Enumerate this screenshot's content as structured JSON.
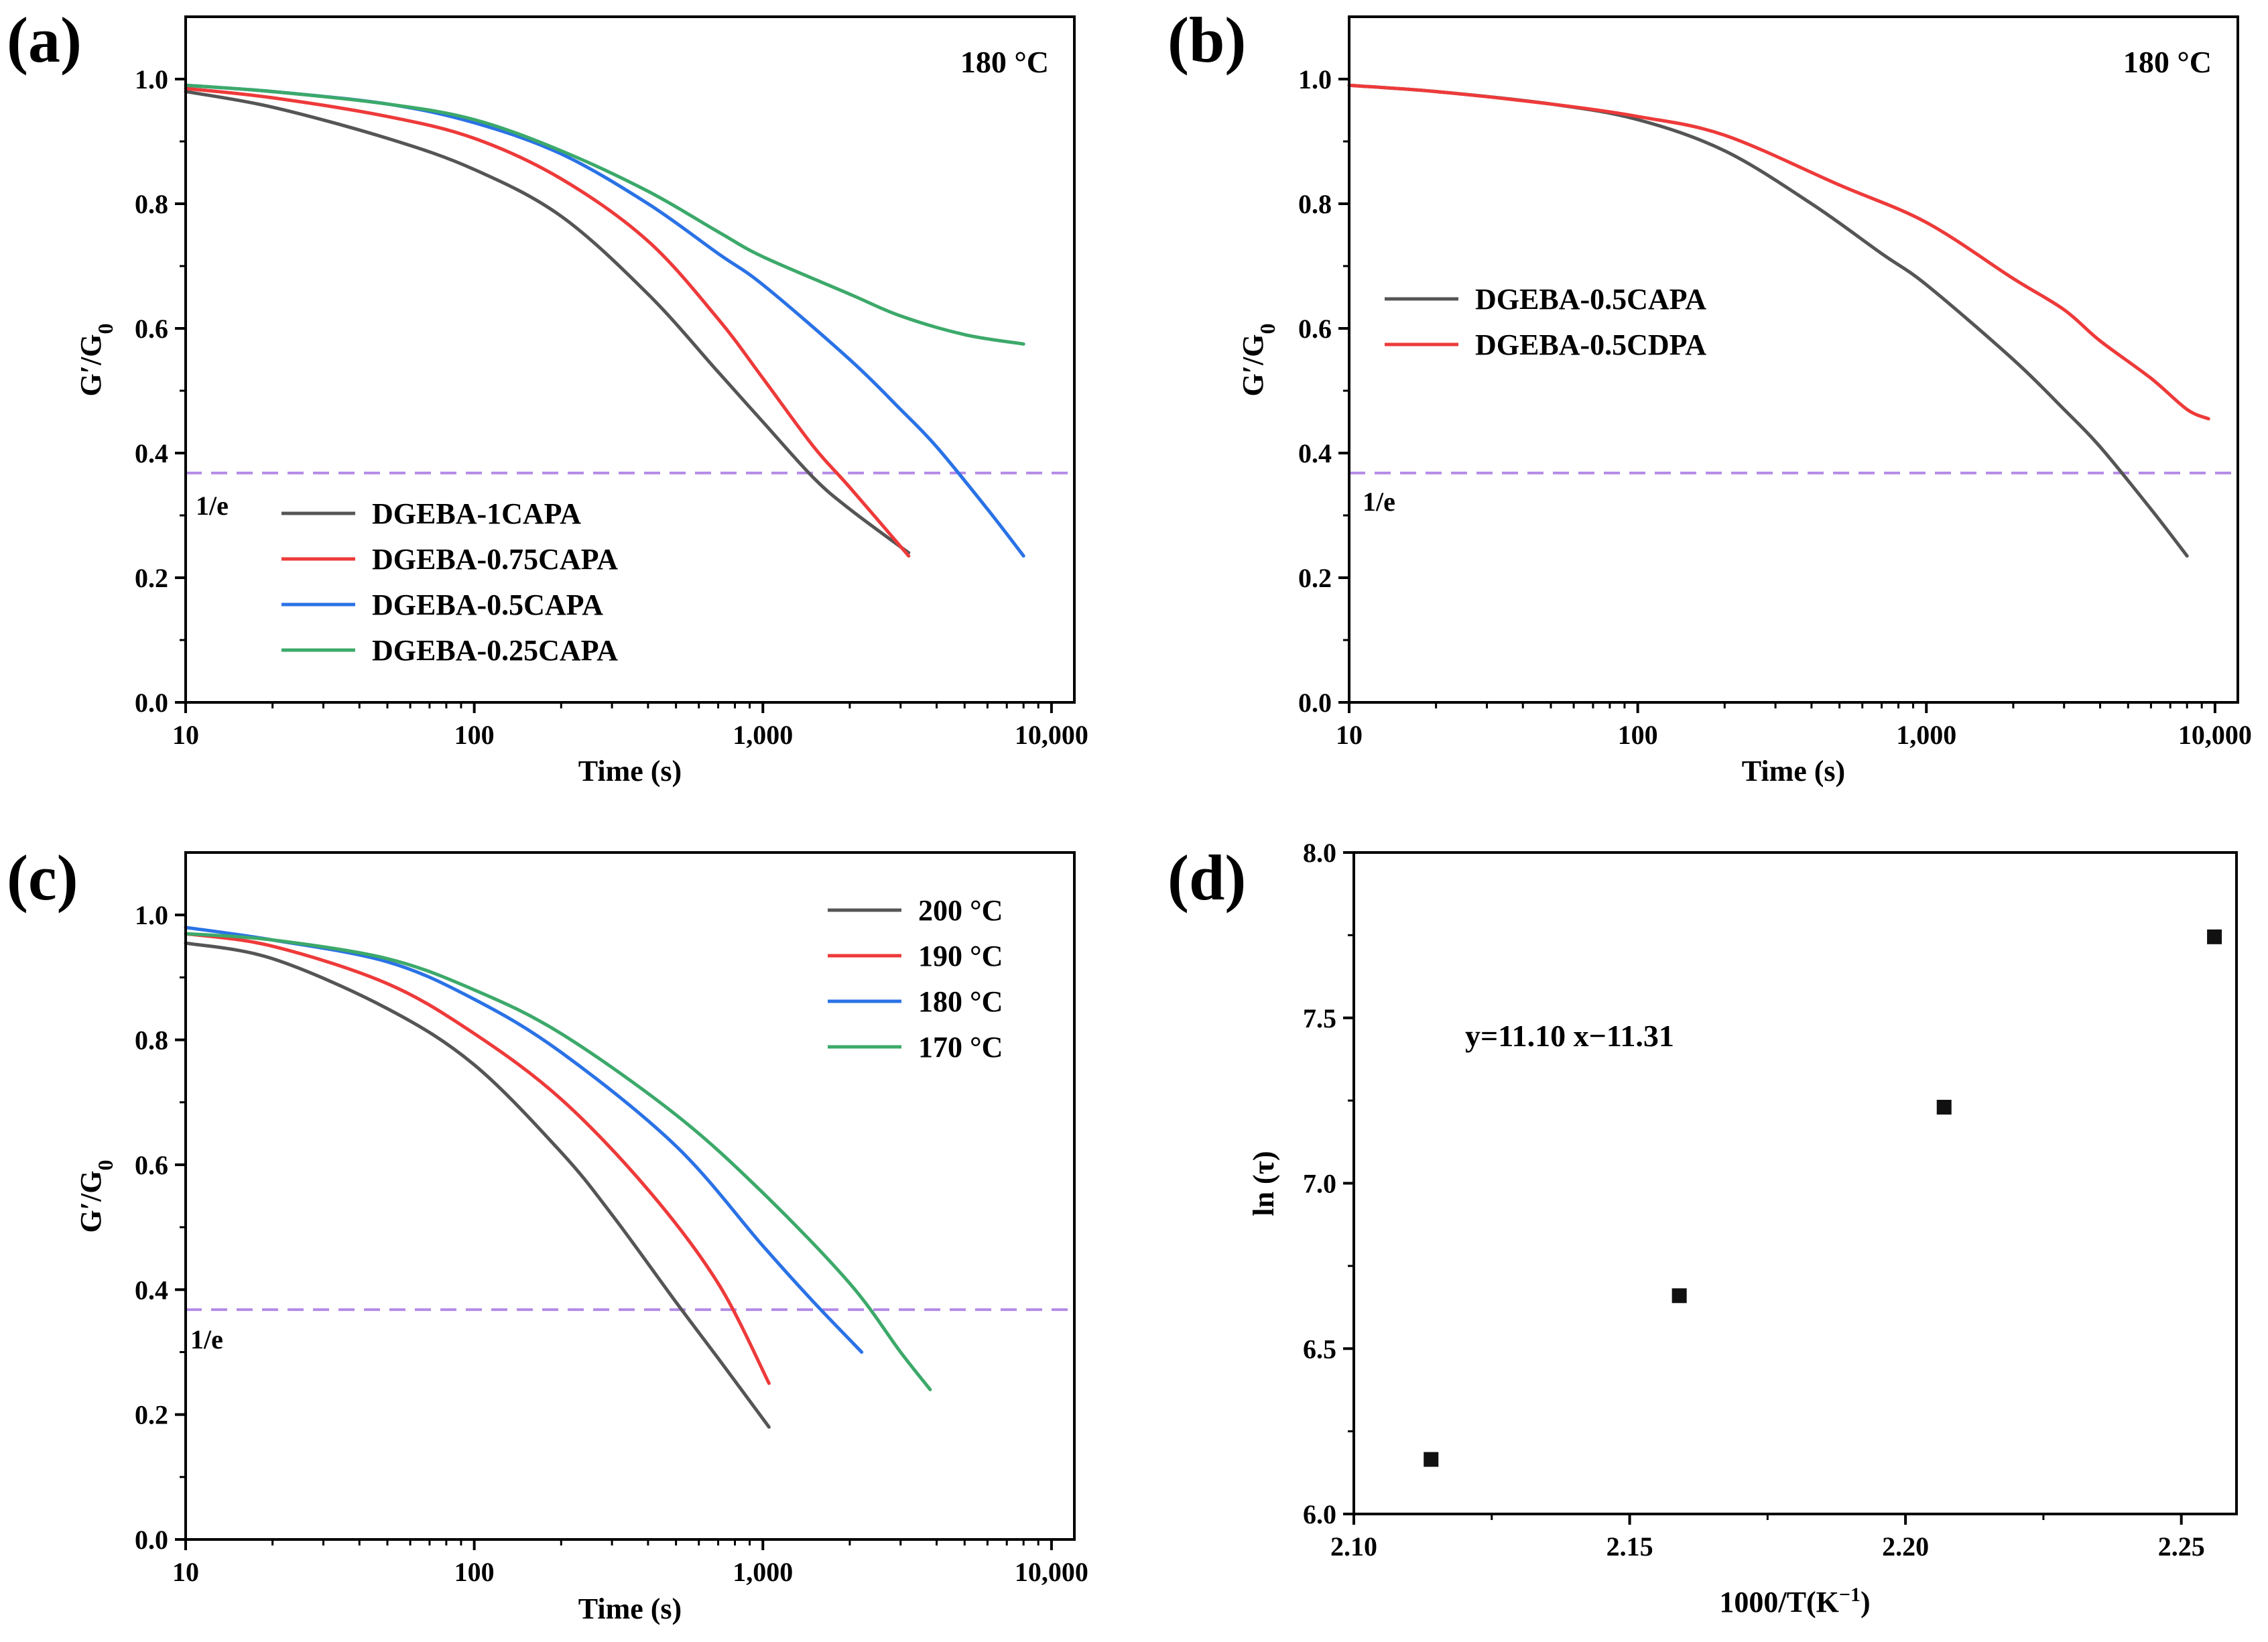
{
  "chart_data": [
    {
      "panel": "(a)",
      "type": "line",
      "annotation": "180 °C",
      "xlabel": "Time (s)",
      "ylabel_main": "G′/G",
      "ylabel_sub": "0",
      "x_scale": "log",
      "xlim": [
        10,
        12000
      ],
      "ylim": [
        0,
        1.1
      ],
      "x_ticks": [
        10,
        100,
        1000,
        10000
      ],
      "x_tick_labels": [
        "10",
        "100",
        "1,000",
        "10,000"
      ],
      "y_ticks": [
        0,
        0.2,
        0.4,
        0.6,
        0.8,
        1.0
      ],
      "y_tick_labels": [
        "0.0",
        "0.2",
        "0.4",
        "0.6",
        "0.8",
        "1.0"
      ],
      "reference_line": {
        "y": 0.368,
        "label": "1/e",
        "color": "#b48ae6"
      },
      "legend_position": "bottom-left",
      "series": [
        {
          "name": "DGEBA-1CAPA",
          "color": "#555555",
          "x": [
            10,
            20,
            50,
            100,
            200,
            400,
            700,
            1000,
            1500,
            2000,
            3200
          ],
          "y": [
            0.98,
            0.955,
            0.905,
            0.855,
            0.78,
            0.655,
            0.53,
            0.45,
            0.36,
            0.31,
            0.24
          ]
        },
        {
          "name": "DGEBA-0.75CAPA",
          "color": "#ee3a3a",
          "x": [
            10,
            20,
            50,
            100,
            200,
            400,
            700,
            1000,
            1500,
            2000,
            3200
          ],
          "y": [
            0.985,
            0.97,
            0.94,
            0.905,
            0.84,
            0.74,
            0.615,
            0.52,
            0.41,
            0.345,
            0.235
          ]
        },
        {
          "name": "DGEBA-0.5CAPA",
          "color": "#2a72e6",
          "x": [
            10,
            20,
            50,
            100,
            200,
            400,
            700,
            1000,
            2000,
            3000,
            4000,
            6000,
            8000
          ],
          "y": [
            0.99,
            0.98,
            0.96,
            0.93,
            0.88,
            0.8,
            0.72,
            0.67,
            0.55,
            0.47,
            0.41,
            0.31,
            0.235
          ]
        },
        {
          "name": "DGEBA-0.25CAPA",
          "color": "#3ca96a",
          "x": [
            10,
            20,
            50,
            100,
            200,
            400,
            700,
            1000,
            2000,
            3000,
            5000,
            8000
          ],
          "y": [
            0.99,
            0.98,
            0.96,
            0.935,
            0.885,
            0.82,
            0.755,
            0.715,
            0.655,
            0.62,
            0.59,
            0.575
          ]
        }
      ]
    },
    {
      "panel": "(b)",
      "type": "line",
      "annotation": "180 °C",
      "xlabel": "Time (s)",
      "ylabel_main": "G′/G",
      "ylabel_sub": "0",
      "x_scale": "log",
      "xlim": [
        10,
        12000
      ],
      "ylim": [
        0,
        1.1
      ],
      "x_ticks": [
        10,
        100,
        1000,
        10000
      ],
      "x_tick_labels": [
        "10",
        "100",
        "1,000",
        "10,000"
      ],
      "y_ticks": [
        0,
        0.2,
        0.4,
        0.6,
        0.8,
        1.0
      ],
      "y_tick_labels": [
        "0.0",
        "0.2",
        "0.4",
        "0.6",
        "0.8",
        "1.0"
      ],
      "reference_line": {
        "y": 0.368,
        "label": "1/e",
        "color": "#b48ae6"
      },
      "legend_position": "middle-left",
      "series": [
        {
          "name": "DGEBA-0.5CAPA",
          "color": "#555555",
          "x": [
            10,
            20,
            50,
            100,
            200,
            400,
            700,
            1000,
            2000,
            3000,
            4000,
            6000,
            8000
          ],
          "y": [
            0.99,
            0.98,
            0.96,
            0.935,
            0.885,
            0.8,
            0.72,
            0.67,
            0.55,
            0.47,
            0.41,
            0.31,
            0.235
          ]
        },
        {
          "name": "DGEBA-0.5CDPA",
          "color": "#ee3a3a",
          "x": [
            10,
            20,
            50,
            100,
            200,
            500,
            1000,
            2000,
            3000,
            4000,
            6000,
            8000,
            9500
          ],
          "y": [
            0.99,
            0.98,
            0.96,
            0.94,
            0.91,
            0.83,
            0.77,
            0.68,
            0.63,
            0.58,
            0.52,
            0.47,
            0.455
          ]
        }
      ]
    },
    {
      "panel": "(c)",
      "type": "line",
      "xlabel": "Time (s)",
      "ylabel_main": "G′/G",
      "ylabel_sub": "0",
      "x_scale": "log",
      "xlim": [
        10,
        12000
      ],
      "ylim": [
        0,
        1.1
      ],
      "x_ticks": [
        10,
        100,
        1000,
        10000
      ],
      "x_tick_labels": [
        "10",
        "100",
        "1,000",
        "10,000"
      ],
      "y_ticks": [
        0,
        0.2,
        0.4,
        0.6,
        0.8,
        1.0
      ],
      "y_tick_labels": [
        "0.0",
        "0.2",
        "0.4",
        "0.6",
        "0.8",
        "1.0"
      ],
      "reference_line": {
        "y": 0.368,
        "label": "1/e",
        "color": "#b48ae6"
      },
      "legend_position": "top-right",
      "series": [
        {
          "name": "200 °C",
          "color": "#555555",
          "x": [
            10,
            20,
            50,
            100,
            200,
            300,
            500,
            700,
            1050
          ],
          "y": [
            0.955,
            0.93,
            0.85,
            0.76,
            0.62,
            0.52,
            0.38,
            0.29,
            0.18
          ]
        },
        {
          "name": "190 °C",
          "color": "#ee3a3a",
          "x": [
            10,
            20,
            50,
            100,
            200,
            400,
            700,
            1050
          ],
          "y": [
            0.97,
            0.95,
            0.89,
            0.81,
            0.705,
            0.56,
            0.41,
            0.25
          ]
        },
        {
          "name": "180 °C",
          "color": "#2a72e6",
          "x": [
            10,
            20,
            50,
            100,
            200,
            500,
            1000,
            1500,
            2200
          ],
          "y": [
            0.98,
            0.96,
            0.925,
            0.865,
            0.78,
            0.63,
            0.47,
            0.38,
            0.3
          ]
        },
        {
          "name": "170 °C",
          "color": "#3ca96a",
          "x": [
            10,
            20,
            50,
            100,
            200,
            500,
            1000,
            2000,
            3000,
            3800
          ],
          "y": [
            0.97,
            0.96,
            0.93,
            0.88,
            0.81,
            0.68,
            0.555,
            0.41,
            0.3,
            0.24
          ]
        }
      ]
    },
    {
      "panel": "(d)",
      "type": "scatter",
      "xlabel": "1000/T(K",
      "xlabel_sup": "−1",
      "xlabel_end": ")",
      "ylabel": "ln (τ)",
      "x_scale": "linear",
      "xlim": [
        2.1,
        2.26
      ],
      "ylim": [
        6.0,
        8.0
      ],
      "x_ticks": [
        2.1,
        2.15,
        2.2,
        2.25
      ],
      "x_tick_labels": [
        "2.10",
        "2.15",
        "2.20",
        "2.25"
      ],
      "y_ticks": [
        6.0,
        6.5,
        7.0,
        7.5,
        8.0
      ],
      "y_tick_labels": [
        "6.0",
        "6.5",
        "7.0",
        "7.5",
        "8.0"
      ],
      "points": {
        "x": [
          2.114,
          2.159,
          2.207,
          2.256
        ],
        "y": [
          6.165,
          6.66,
          7.23,
          7.745
        ],
        "color": "#111111"
      },
      "fit": {
        "equation": "y=11.10 x−11.31",
        "slope": 11.1,
        "intercept": -11.31,
        "x_range": [
          2.114,
          2.256
        ],
        "color": "#e01010"
      }
    }
  ]
}
